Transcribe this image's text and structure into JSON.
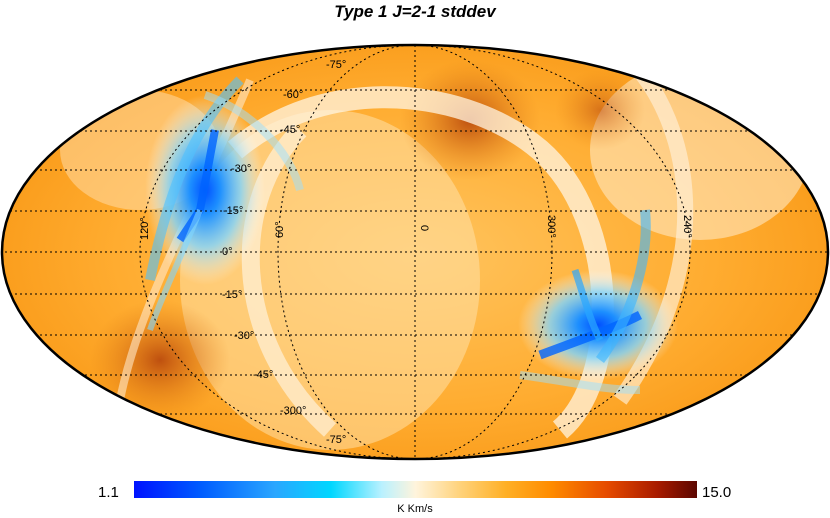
{
  "title": "Type 1 J=2-1 stddev",
  "colorbar": {
    "min": "1.1",
    "max": "15.0",
    "unit": "K Km/s"
  },
  "latitude_labels": [
    "-75°",
    "-60°",
    "-45°",
    "-30°",
    "-15°",
    "0°",
    "-15°",
    "-30°",
    "-45°",
    "-300°",
    "-75°"
  ],
  "longitude_labels": [
    "120°",
    "60°",
    "0",
    "300°",
    "240°"
  ],
  "colors": {
    "low": "#0012ff",
    "mid": "#fff4dc",
    "orange": "#ff9d1c",
    "high": "#5b0600"
  }
}
